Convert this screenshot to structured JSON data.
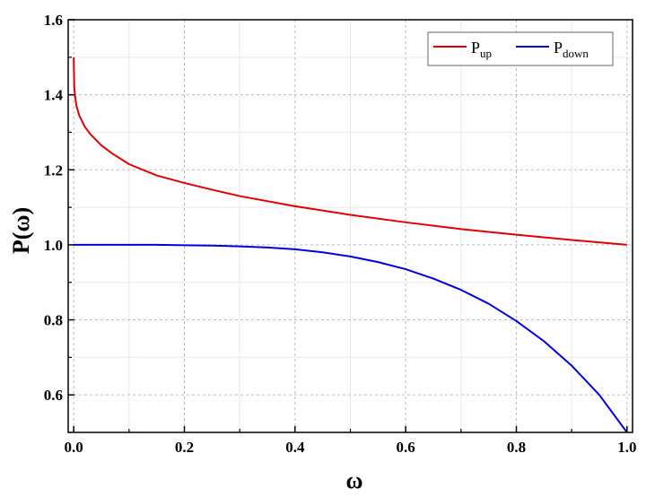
{
  "chart_data": {
    "type": "line",
    "xlabel": "ω",
    "ylabel": "P(ω)",
    "xlim": [
      -0.01,
      1.01
    ],
    "ylim": [
      0.5,
      1.6
    ],
    "xticks": [
      "0.0",
      "0.2",
      "0.4",
      "0.6",
      "0.8",
      "1.0"
    ],
    "yticks": [
      "0.6",
      "0.8",
      "1.0",
      "1.2",
      "1.4",
      "1.6"
    ],
    "grid": true,
    "legend_position": "top-right",
    "series": [
      {
        "name_main": "P",
        "name_sub": "up",
        "color": "#e00000",
        "x": [
          0.0,
          0.001,
          0.003,
          0.005,
          0.01,
          0.02,
          0.03,
          0.05,
          0.07,
          0.1,
          0.15,
          0.2,
          0.25,
          0.3,
          0.4,
          0.5,
          0.6,
          0.7,
          0.8,
          0.9,
          1.0
        ],
        "y": [
          1.5,
          1.42,
          1.39,
          1.37,
          1.345,
          1.315,
          1.295,
          1.265,
          1.243,
          1.215,
          1.185,
          1.165,
          1.147,
          1.13,
          1.103,
          1.08,
          1.06,
          1.042,
          1.027,
          1.013,
          1.0
        ]
      },
      {
        "name_main": "P",
        "name_sub": "down",
        "color": "#0000dd",
        "x": [
          0.0,
          0.05,
          0.1,
          0.15,
          0.2,
          0.25,
          0.3,
          0.35,
          0.4,
          0.45,
          0.5,
          0.55,
          0.6,
          0.65,
          0.7,
          0.75,
          0.8,
          0.85,
          0.9,
          0.95,
          1.0
        ],
        "y": [
          1.0,
          1.0,
          1.0,
          1.0,
          0.999,
          0.998,
          0.996,
          0.993,
          0.988,
          0.98,
          0.969,
          0.954,
          0.935,
          0.91,
          0.88,
          0.843,
          0.797,
          0.743,
          0.678,
          0.6,
          0.5
        ]
      }
    ]
  }
}
